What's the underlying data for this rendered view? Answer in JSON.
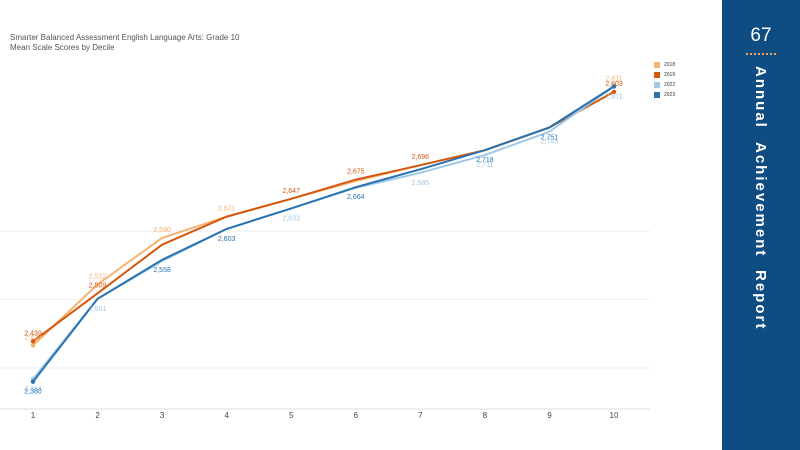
{
  "page_number": "67",
  "side_title_words": [
    "Annual",
    "Achievement",
    "Report"
  ],
  "colors": {
    "panel": "#0f4c81",
    "accent": "#f0a050"
  },
  "chart_data": {
    "type": "line",
    "title": "Smarter Balanced Assessment English Language Arts: Grade 10",
    "subtitle": "Mean Scale Scores by Decile",
    "xlabel": "",
    "ylabel": "",
    "categories": [
      "1",
      "2",
      "3",
      "4",
      "5",
      "6",
      "7",
      "8",
      "9",
      "10"
    ],
    "ylim": [
      2365,
      2835
    ],
    "gridlines": [
      2400,
      2500,
      2600
    ],
    "legend_position": "top-right",
    "series": [
      {
        "name": "2018",
        "color": "#f5b470",
        "values": [
          2433,
          2522,
          2590,
          2621,
          2647,
          2673,
          2696,
          2718,
          2751,
          2811
        ]
      },
      {
        "name": "2019",
        "color": "#d4570e",
        "values": [
          2439,
          2509,
          2580,
          2621,
          2647,
          2675,
          2696,
          2718,
          2751,
          2803
        ]
      },
      {
        "name": "2022",
        "color": "#9ec9e8",
        "values": [
          2384,
          2501,
          2556,
          2603,
          2633,
          2663,
          2685,
          2711,
          2745,
          2811
        ]
      },
      {
        "name": "2023",
        "color": "#2a73b0",
        "values": [
          2380,
          2501,
          2558,
          2603,
          2633,
          2664,
          2690,
          2718,
          2751,
          2811
        ]
      }
    ],
    "data_labels": [
      {
        "series": 0,
        "x": "1",
        "value": "2,433"
      },
      {
        "series": 1,
        "x": "1",
        "value": "2,439"
      },
      {
        "series": 2,
        "x": "1",
        "value": "2,384"
      },
      {
        "series": 3,
        "x": "1",
        "value": "2,380"
      },
      {
        "series": 0,
        "x": "2",
        "value": "2,522"
      },
      {
        "series": 1,
        "x": "2",
        "value": "2,509"
      },
      {
        "series": 2,
        "x": "2",
        "value": "2,501"
      },
      {
        "series": 0,
        "x": "3",
        "value": "2,590"
      },
      {
        "series": 3,
        "x": "3",
        "value": "2,558"
      },
      {
        "series": 0,
        "x": "4",
        "value": "2,621"
      },
      {
        "series": 3,
        "x": "4",
        "value": "2,603"
      },
      {
        "series": 1,
        "x": "5",
        "value": "2,647"
      },
      {
        "series": 2,
        "x": "5",
        "value": "2,633"
      },
      {
        "series": 1,
        "x": "6",
        "value": "2,675"
      },
      {
        "series": 3,
        "x": "6",
        "value": "2,664"
      },
      {
        "series": 1,
        "x": "7",
        "value": "2,696"
      },
      {
        "series": 2,
        "x": "7",
        "value": "2,685"
      },
      {
        "series": 3,
        "x": "8",
        "value": "2,718"
      },
      {
        "series": 2,
        "x": "8",
        "value": "2,711"
      },
      {
        "series": 3,
        "x": "9",
        "value": "2,751"
      },
      {
        "series": 2,
        "x": "9",
        "value": "2,745"
      },
      {
        "series": 0,
        "x": "10",
        "value": "2,811"
      },
      {
        "series": 2,
        "x": "10",
        "value": "2,811"
      },
      {
        "series": 1,
        "x": "10",
        "value": "2,803"
      }
    ]
  }
}
